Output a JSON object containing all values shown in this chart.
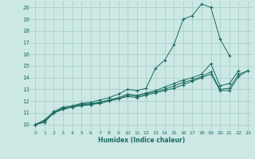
{
  "xlabel": "Humidex (Indice chaleur)",
  "bg_color": "#cce8e4",
  "line_color": "#1a6b60",
  "grid_color": "#aacfca",
  "xlim": [
    -0.5,
    23.5
  ],
  "ylim": [
    9.5,
    20.5
  ],
  "xticks": [
    0,
    1,
    2,
    3,
    4,
    5,
    6,
    7,
    8,
    9,
    10,
    11,
    12,
    13,
    14,
    15,
    16,
    17,
    18,
    19,
    20,
    21,
    22,
    23
  ],
  "yticks": [
    10,
    11,
    12,
    13,
    14,
    15,
    16,
    17,
    18,
    19,
    20
  ],
  "lines": [
    {
      "x": [
        0,
        1,
        2,
        3,
        4,
        5,
        6,
        7,
        8,
        9,
        10,
        11,
        12,
        13,
        14,
        15,
        16,
        17,
        18,
        19,
        20,
        21
      ],
      "y": [
        10,
        10.4,
        11.1,
        11.5,
        11.6,
        11.8,
        11.9,
        12.1,
        12.3,
        12.6,
        13.0,
        12.9,
        13.1,
        14.8,
        15.5,
        16.8,
        19.0,
        19.3,
        20.3,
        20.0,
        17.3,
        15.9
      ]
    },
    {
      "x": [
        0,
        1,
        2,
        3,
        4,
        5,
        6,
        7,
        8,
        9,
        10,
        11,
        12,
        13,
        14,
        15,
        16,
        17,
        18,
        19,
        20,
        21,
        22
      ],
      "y": [
        10,
        10.3,
        11.0,
        11.4,
        11.5,
        11.8,
        11.8,
        11.9,
        12.1,
        12.3,
        12.6,
        12.5,
        12.7,
        12.9,
        13.2,
        13.5,
        13.8,
        14.0,
        14.3,
        15.2,
        13.3,
        13.5,
        14.6
      ]
    },
    {
      "x": [
        0,
        1,
        2,
        3,
        4,
        5,
        6,
        7,
        8,
        9,
        10,
        11,
        12,
        13,
        14,
        15,
        16,
        17,
        18,
        19,
        20,
        21,
        22,
        23
      ],
      "y": [
        10,
        10.2,
        11.0,
        11.3,
        11.5,
        11.7,
        11.7,
        11.9,
        12.1,
        12.2,
        12.5,
        12.4,
        12.6,
        12.8,
        13.0,
        13.3,
        13.6,
        13.8,
        14.1,
        14.5,
        13.0,
        13.1,
        14.3,
        14.6
      ]
    },
    {
      "x": [
        0,
        1,
        2,
        3,
        4,
        5,
        6,
        7,
        8,
        9,
        10,
        11,
        12,
        13,
        14,
        15,
        16,
        17,
        18,
        19,
        20,
        21,
        22,
        23
      ],
      "y": [
        10,
        10.2,
        11.0,
        11.3,
        11.5,
        11.6,
        11.7,
        11.8,
        12.0,
        12.2,
        12.4,
        12.3,
        12.5,
        12.7,
        12.9,
        13.1,
        13.4,
        13.7,
        14.0,
        14.3,
        12.9,
        12.9,
        14.1,
        14.6
      ]
    }
  ]
}
